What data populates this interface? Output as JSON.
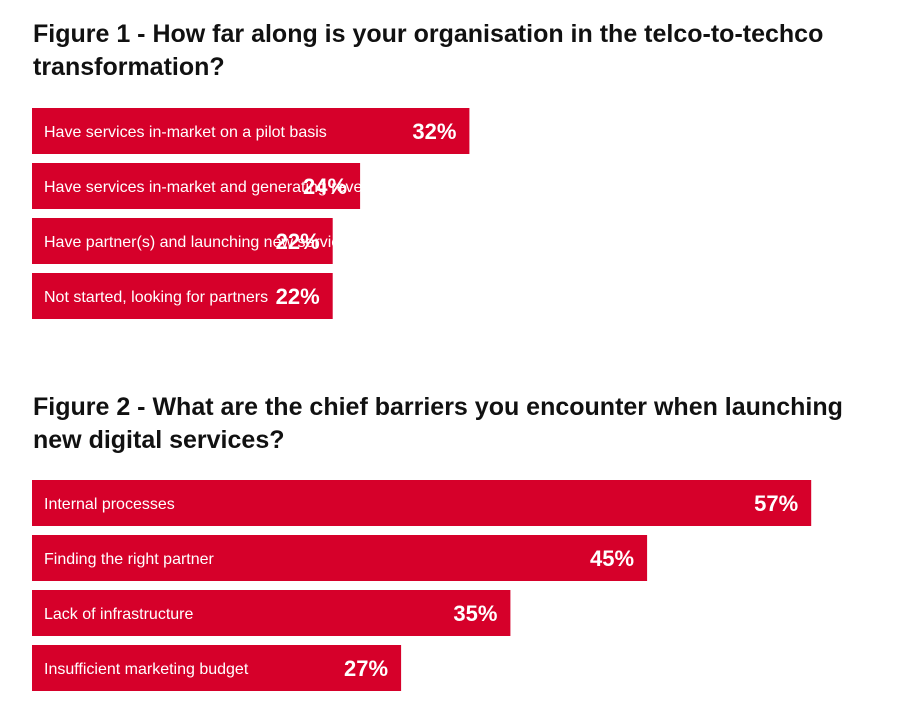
{
  "colors": {
    "bar": "#d6002a",
    "text_on_bar": "#ffffff",
    "title": "#111111"
  },
  "chart_data": [
    {
      "type": "bar",
      "orientation": "horizontal",
      "title": "Figure 1 - How far along is your organisation in the telco-to-techco transformation?",
      "categories": [
        "Have services in-market on a pilot basis",
        "Have services in-market and generating revenue",
        "Have partner(s) and launching new services imminently",
        "Not started, looking for partners"
      ],
      "values": [
        32,
        24,
        22,
        22
      ],
      "value_labels": [
        "32%",
        "24%",
        "22%",
        "22%"
      ],
      "unit": "%",
      "grid": false,
      "legend": "none"
    },
    {
      "type": "bar",
      "orientation": "horizontal",
      "title": "Figure 2 - What are the chief barriers you encounter when launching new digital services?",
      "categories": [
        "Internal processes",
        "Finding the right partner",
        "Lack of infrastructure",
        "Insufficient marketing budget"
      ],
      "values": [
        57,
        45,
        35,
        27
      ],
      "value_labels": [
        "57%",
        "45%",
        "35%",
        "27%"
      ],
      "unit": "%",
      "grid": false,
      "legend": "none"
    }
  ]
}
